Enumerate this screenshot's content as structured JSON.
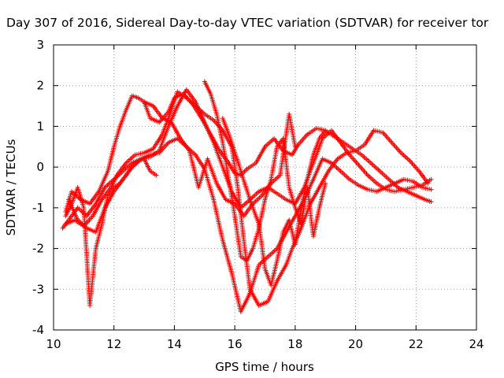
{
  "chart_data": {
    "type": "scatter",
    "title": "Day 307 of 2016, Sidereal Day-to-day VTEC variation (SDTVAR) for receiver tor",
    "xlabel": "GPS time / hours",
    "ylabel": "SDTVAR / TECUs",
    "xlim": [
      10,
      24
    ],
    "ylim": [
      -4,
      3
    ],
    "xticks": [
      "10",
      "12",
      "14",
      "16",
      "18",
      "20",
      "22",
      "24"
    ],
    "yticks": [
      "-4",
      "-3",
      "-2",
      "-1",
      "0",
      "1",
      "2",
      "3"
    ],
    "grid": true,
    "marker": "plus",
    "color": "#ff0000",
    "series": [
      {
        "x": [
          10.4,
          10.6,
          10.9,
          11.2,
          11.5,
          11.8,
          12.0,
          12.2,
          12.4,
          12.6,
          12.8,
          13.0,
          13.2,
          13.5,
          13.8,
          14.0,
          14.3,
          14.6,
          14.9,
          15.2,
          15.5,
          15.8,
          16.0,
          16.2,
          16.4,
          16.7,
          17.0,
          17.3,
          17.6,
          17.9,
          18.1,
          18.4,
          18.7,
          19.0,
          19.3,
          19.6,
          19.9,
          20.2,
          20.5,
          20.8,
          21.1,
          21.4,
          21.7,
          22.0,
          22.3,
          22.5
        ],
        "y": [
          -1.1,
          -0.6,
          -0.8,
          -0.9,
          -0.6,
          -0.1,
          0.5,
          1.0,
          1.4,
          1.75,
          1.7,
          1.6,
          1.2,
          1.1,
          1.35,
          1.7,
          1.8,
          1.55,
          1.2,
          0.8,
          0.4,
          0.1,
          -0.15,
          -0.2,
          -0.05,
          0.1,
          0.5,
          0.7,
          0.4,
          0.3,
          0.55,
          0.8,
          0.95,
          0.9,
          0.75,
          0.6,
          0.45,
          0.3,
          0.1,
          -0.1,
          -0.3,
          -0.5,
          -0.6,
          -0.7,
          -0.8,
          -0.85
        ]
      },
      {
        "x": [
          10.4,
          10.7,
          11.0,
          11.3,
          11.6,
          11.9,
          12.1,
          12.4,
          12.7,
          13.0,
          13.3,
          13.6,
          13.9,
          14.1,
          14.4,
          14.7,
          15.0,
          15.3,
          15.6,
          15.9,
          16.1,
          16.3,
          16.5,
          16.8,
          17.1,
          17.4,
          17.7,
          17.9,
          18.2,
          18.5,
          18.8,
          19.1,
          19.4,
          19.7,
          20.0,
          20.3,
          20.6,
          20.9,
          21.2,
          21.5,
          21.8,
          22.1,
          22.4
        ],
        "y": [
          -1.4,
          -1.3,
          -1.45,
          -1.2,
          -0.8,
          -0.5,
          -0.2,
          0.1,
          0.3,
          0.35,
          0.45,
          0.8,
          1.4,
          1.85,
          1.7,
          1.5,
          1.3,
          1.15,
          0.9,
          0.5,
          -0.5,
          -1.8,
          -3.0,
          -3.4,
          -3.3,
          -2.8,
          -2.4,
          -2.0,
          -1.5,
          -0.9,
          -0.5,
          -0.1,
          0.2,
          0.35,
          0.4,
          0.55,
          0.9,
          0.85,
          0.6,
          0.35,
          0.15,
          -0.1,
          -0.4
        ]
      },
      {
        "x": [
          10.3,
          10.5,
          10.8,
          11.1,
          11.4,
          11.7,
          12.0,
          12.3,
          12.6,
          12.9,
          13.2,
          13.5,
          13.8,
          14.1,
          14.4,
          14.7,
          15.0,
          15.3,
          15.6,
          15.9,
          16.2,
          16.5,
          16.8,
          17.1,
          17.4,
          17.7,
          18.0,
          18.3,
          18.6,
          18.9,
          19.2,
          19.5,
          19.8,
          20.1,
          20.4,
          20.7,
          21.0,
          21.3,
          21.6,
          21.9,
          22.2,
          22.5
        ],
        "y": [
          -1.5,
          -1.3,
          -1.0,
          -1.2,
          -0.9,
          -0.5,
          -0.3,
          -0.1,
          0.1,
          0.2,
          0.3,
          0.35,
          0.6,
          0.7,
          0.5,
          0.3,
          -0.05,
          -0.8,
          -1.8,
          -2.6,
          -3.55,
          -3.1,
          -2.4,
          -2.2,
          -2.0,
          -1.6,
          -1.2,
          -0.8,
          -0.3,
          0.2,
          0.1,
          -0.1,
          -0.3,
          -0.45,
          -0.55,
          -0.6,
          -0.5,
          -0.4,
          -0.3,
          -0.35,
          -0.5,
          -0.55
        ]
      },
      {
        "x": [
          10.5,
          10.8,
          11.1,
          11.4,
          11.7,
          12.0,
          12.3,
          12.6,
          12.9,
          13.2,
          13.5,
          13.8,
          14.1,
          14.4,
          14.7,
          15.0,
          15.3,
          15.6,
          15.9,
          16.2,
          16.5,
          16.8,
          17.1,
          17.4,
          17.7,
          18.0,
          18.3,
          18.6,
          18.9,
          19.2,
          19.5,
          19.8,
          20.1,
          20.4,
          20.7,
          21.0,
          21.3,
          21.6,
          21.9,
          22.2,
          22.5
        ],
        "y": [
          -0.8,
          -1.3,
          -1.5,
          -1.6,
          -1.0,
          -0.6,
          -0.3,
          0.0,
          0.2,
          0.25,
          0.4,
          1.0,
          1.5,
          1.9,
          1.6,
          1.1,
          0.6,
          0.0,
          -0.6,
          -1.0,
          -0.8,
          -0.6,
          -0.5,
          -0.65,
          -0.8,
          -0.9,
          -0.5,
          0.1,
          0.7,
          0.9,
          0.6,
          0.3,
          0.05,
          -0.2,
          -0.4,
          -0.55,
          -0.6,
          -0.55,
          -0.5,
          -0.45,
          -0.3
        ]
      },
      {
        "x": [
          10.4,
          10.6,
          10.8,
          11.0,
          11.2,
          11.4,
          11.6,
          11.8,
          12.0,
          12.2,
          12.4,
          12.6,
          12.8,
          13.0,
          13.2,
          13.4
        ],
        "y": [
          -1.2,
          -0.9,
          -0.5,
          -1.0,
          -3.4,
          -2.0,
          -1.4,
          -0.7,
          -0.5,
          -0.4,
          -0.2,
          0.0,
          0.15,
          0.2,
          -0.1,
          -0.2
        ]
      },
      {
        "x": [
          15.0,
          15.2,
          15.4,
          15.6,
          15.8,
          16.0,
          16.2,
          16.4,
          16.6,
          16.8,
          17.0,
          17.2,
          17.4,
          17.6,
          17.8,
          18.0,
          18.2,
          18.4,
          18.6,
          18.8,
          19.0
        ],
        "y": [
          2.1,
          1.8,
          1.3,
          0.6,
          -0.3,
          -1.2,
          -2.2,
          -2.3,
          -2.0,
          -1.5,
          -0.8,
          -0.3,
          0.5,
          0.7,
          -0.5,
          -1.0,
          -1.4,
          -0.5,
          -1.7,
          -1.0,
          -0.4
        ]
      },
      {
        "x": [
          15.6,
          15.9,
          16.2,
          16.5,
          16.8,
          17.0,
          17.2,
          17.4,
          17.6,
          17.8,
          18.0,
          18.2,
          18.4,
          18.6,
          18.8,
          19.0
        ],
        "y": [
          1.2,
          0.6,
          -0.1,
          -0.8,
          -1.4,
          -2.5,
          -2.9,
          -2.3,
          -1.6,
          -1.3,
          -1.9,
          -1.0,
          -0.3,
          0.3,
          0.7,
          0.9
        ]
      },
      {
        "x": [
          13.0,
          13.3,
          13.6,
          13.9,
          14.2,
          14.5,
          14.8,
          15.1,
          15.4,
          15.7,
          16.0,
          16.3,
          16.6,
          16.9,
          17.2,
          17.5,
          17.8,
          18.0
        ],
        "y": [
          1.6,
          1.5,
          1.2,
          1.1,
          0.7,
          0.4,
          -0.5,
          0.2,
          -0.4,
          -0.8,
          -0.9,
          -1.2,
          -0.9,
          -0.7,
          -0.4,
          -0.2,
          1.3,
          0.5
        ]
      }
    ]
  }
}
